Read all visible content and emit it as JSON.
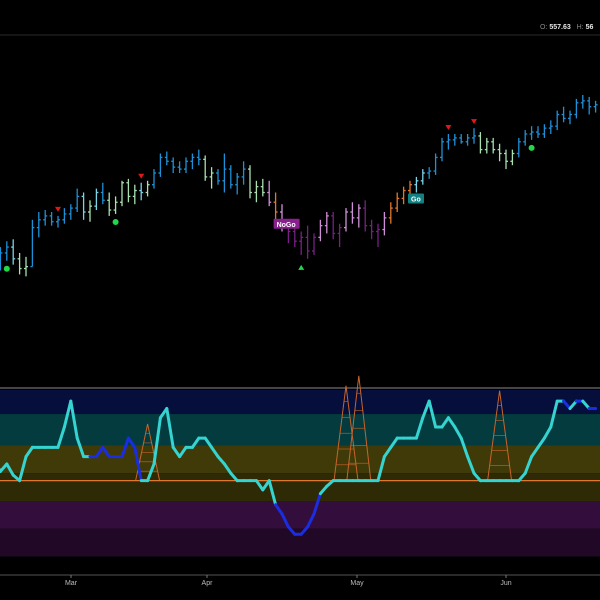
{
  "header": {
    "open_label": "O:",
    "open_value": "557.63",
    "high_label": "H:",
    "high_value": "56"
  },
  "colors": {
    "background": "#000000",
    "strong_up": "#1e90d8",
    "weak_up": "#78d4e6",
    "neutral": "#a8e0b0",
    "weak_down": "#cf8fd6",
    "strong_down": "#7a1f86",
    "neutral_orange": "#e0782c",
    "oscillator_cyan": "#35d4d0",
    "oscillator_blue": "#1a2de0",
    "volume_orange": "#c8642a",
    "go_badge": "#128080",
    "nogo_badge": "#8a1f8e",
    "up_triangle": "#22d84a",
    "down_triangle": "#e01818",
    "dot": "#22d84a"
  },
  "chart_data": {
    "type": "ohlc",
    "x_axis_months": [
      "Mar",
      "Apr",
      "May",
      "Jun"
    ],
    "price_panel": {
      "bar_colors_legend": [
        "strong_up",
        "weak_up",
        "neutral",
        "weak_down",
        "strong_down",
        "neutral_orange"
      ],
      "bars": [
        {
          "i": 0,
          "o": 0.12,
          "h": 0.18,
          "l": 0.06,
          "c": 0.14,
          "col": "weak_up"
        },
        {
          "i": 1,
          "o": 0.14,
          "h": 0.22,
          "l": 0.1,
          "c": 0.19,
          "col": "strong_up"
        },
        {
          "i": 2,
          "o": 0.19,
          "h": 0.25,
          "l": 0.15,
          "c": 0.22,
          "col": "strong_up"
        },
        {
          "i": 3,
          "o": 0.22,
          "h": 0.26,
          "l": 0.13,
          "c": 0.16,
          "col": "weak_up"
        },
        {
          "i": 4,
          "o": 0.16,
          "h": 0.19,
          "l": 0.08,
          "c": 0.11,
          "col": "neutral"
        },
        {
          "i": 5,
          "o": 0.11,
          "h": 0.17,
          "l": 0.07,
          "c": 0.12,
          "col": "neutral"
        },
        {
          "i": 6,
          "o": 0.12,
          "h": 0.36,
          "l": 0.12,
          "c": 0.32,
          "col": "strong_up"
        },
        {
          "i": 7,
          "o": 0.32,
          "h": 0.4,
          "l": 0.27,
          "c": 0.36,
          "col": "strong_up"
        },
        {
          "i": 8,
          "o": 0.36,
          "h": 0.41,
          "l": 0.33,
          "c": 0.38,
          "col": "strong_up"
        },
        {
          "i": 9,
          "o": 0.38,
          "h": 0.4,
          "l": 0.33,
          "c": 0.35,
          "col": "strong_up"
        },
        {
          "i": 10,
          "o": 0.35,
          "h": 0.38,
          "l": 0.32,
          "c": 0.36,
          "col": "strong_up"
        },
        {
          "i": 11,
          "o": 0.36,
          "h": 0.42,
          "l": 0.34,
          "c": 0.39,
          "col": "strong_up"
        },
        {
          "i": 12,
          "o": 0.39,
          "h": 0.44,
          "l": 0.36,
          "c": 0.42,
          "col": "strong_up"
        },
        {
          "i": 13,
          "o": 0.42,
          "h": 0.52,
          "l": 0.4,
          "c": 0.48,
          "col": "strong_up"
        },
        {
          "i": 14,
          "o": 0.48,
          "h": 0.5,
          "l": 0.36,
          "c": 0.4,
          "col": "weak_up"
        },
        {
          "i": 15,
          "o": 0.4,
          "h": 0.46,
          "l": 0.35,
          "c": 0.43,
          "col": "neutral"
        },
        {
          "i": 16,
          "o": 0.43,
          "h": 0.52,
          "l": 0.41,
          "c": 0.5,
          "col": "weak_up"
        },
        {
          "i": 17,
          "o": 0.5,
          "h": 0.55,
          "l": 0.44,
          "c": 0.46,
          "col": "strong_up"
        },
        {
          "i": 18,
          "o": 0.46,
          "h": 0.5,
          "l": 0.38,
          "c": 0.41,
          "col": "neutral"
        },
        {
          "i": 19,
          "o": 0.41,
          "h": 0.48,
          "l": 0.39,
          "c": 0.45,
          "col": "neutral"
        },
        {
          "i": 20,
          "o": 0.45,
          "h": 0.56,
          "l": 0.43,
          "c": 0.55,
          "col": "neutral"
        },
        {
          "i": 21,
          "o": 0.55,
          "h": 0.57,
          "l": 0.45,
          "c": 0.48,
          "col": "neutral"
        },
        {
          "i": 22,
          "o": 0.48,
          "h": 0.54,
          "l": 0.44,
          "c": 0.51,
          "col": "neutral"
        },
        {
          "i": 23,
          "o": 0.51,
          "h": 0.55,
          "l": 0.46,
          "c": 0.5,
          "col": "weak_up"
        },
        {
          "i": 24,
          "o": 0.5,
          "h": 0.56,
          "l": 0.48,
          "c": 0.54,
          "col": "neutral"
        },
        {
          "i": 25,
          "o": 0.54,
          "h": 0.62,
          "l": 0.52,
          "c": 0.6,
          "col": "strong_up"
        },
        {
          "i": 26,
          "o": 0.6,
          "h": 0.7,
          "l": 0.58,
          "c": 0.68,
          "col": "strong_up"
        },
        {
          "i": 27,
          "o": 0.68,
          "h": 0.71,
          "l": 0.64,
          "c": 0.66,
          "col": "strong_up"
        },
        {
          "i": 28,
          "o": 0.66,
          "h": 0.68,
          "l": 0.6,
          "c": 0.63,
          "col": "strong_up"
        },
        {
          "i": 29,
          "o": 0.63,
          "h": 0.66,
          "l": 0.6,
          "c": 0.62,
          "col": "strong_up"
        },
        {
          "i": 30,
          "o": 0.62,
          "h": 0.68,
          "l": 0.6,
          "c": 0.66,
          "col": "strong_up"
        },
        {
          "i": 31,
          "o": 0.66,
          "h": 0.7,
          "l": 0.62,
          "c": 0.68,
          "col": "strong_up"
        },
        {
          "i": 32,
          "o": 0.68,
          "h": 0.72,
          "l": 0.64,
          "c": 0.67,
          "col": "strong_up"
        },
        {
          "i": 33,
          "o": 0.67,
          "h": 0.69,
          "l": 0.56,
          "c": 0.58,
          "col": "neutral"
        },
        {
          "i": 34,
          "o": 0.58,
          "h": 0.63,
          "l": 0.52,
          "c": 0.6,
          "col": "neutral"
        },
        {
          "i": 35,
          "o": 0.6,
          "h": 0.62,
          "l": 0.54,
          "c": 0.56,
          "col": "strong_up"
        },
        {
          "i": 36,
          "o": 0.56,
          "h": 0.7,
          "l": 0.5,
          "c": 0.62,
          "col": "strong_up"
        },
        {
          "i": 37,
          "o": 0.62,
          "h": 0.64,
          "l": 0.52,
          "c": 0.54,
          "col": "strong_up"
        },
        {
          "i": 38,
          "o": 0.54,
          "h": 0.6,
          "l": 0.49,
          "c": 0.58,
          "col": "strong_up"
        },
        {
          "i": 39,
          "o": 0.58,
          "h": 0.66,
          "l": 0.54,
          "c": 0.62,
          "col": "strong_up"
        },
        {
          "i": 40,
          "o": 0.62,
          "h": 0.64,
          "l": 0.47,
          "c": 0.5,
          "col": "neutral"
        },
        {
          "i": 41,
          "o": 0.5,
          "h": 0.56,
          "l": 0.45,
          "c": 0.53,
          "col": "neutral"
        },
        {
          "i": 42,
          "o": 0.53,
          "h": 0.57,
          "l": 0.48,
          "c": 0.5,
          "col": "neutral"
        },
        {
          "i": 43,
          "o": 0.5,
          "h": 0.56,
          "l": 0.43,
          "c": 0.45,
          "col": "weak_down"
        },
        {
          "i": 44,
          "o": 0.45,
          "h": 0.5,
          "l": 0.36,
          "c": 0.4,
          "col": "neutral_orange"
        },
        {
          "i": 45,
          "o": 0.4,
          "h": 0.44,
          "l": 0.3,
          "c": 0.32,
          "col": "weak_down"
        },
        {
          "i": 46,
          "o": 0.32,
          "h": 0.36,
          "l": 0.24,
          "c": 0.3,
          "col": "strong_down"
        },
        {
          "i": 47,
          "o": 0.3,
          "h": 0.33,
          "l": 0.22,
          "c": 0.25,
          "col": "strong_down"
        },
        {
          "i": 48,
          "o": 0.25,
          "h": 0.3,
          "l": 0.18,
          "c": 0.27,
          "col": "strong_down"
        },
        {
          "i": 49,
          "o": 0.27,
          "h": 0.33,
          "l": 0.16,
          "c": 0.2,
          "col": "strong_down"
        },
        {
          "i": 50,
          "o": 0.2,
          "h": 0.29,
          "l": 0.18,
          "c": 0.27,
          "col": "strong_down"
        },
        {
          "i": 51,
          "o": 0.27,
          "h": 0.36,
          "l": 0.25,
          "c": 0.33,
          "col": "weak_down"
        },
        {
          "i": 52,
          "o": 0.33,
          "h": 0.4,
          "l": 0.29,
          "c": 0.38,
          "col": "weak_down"
        },
        {
          "i": 53,
          "o": 0.38,
          "h": 0.4,
          "l": 0.26,
          "c": 0.29,
          "col": "strong_down"
        },
        {
          "i": 54,
          "o": 0.29,
          "h": 0.34,
          "l": 0.22,
          "c": 0.32,
          "col": "strong_down"
        },
        {
          "i": 55,
          "o": 0.32,
          "h": 0.42,
          "l": 0.3,
          "c": 0.4,
          "col": "weak_down"
        },
        {
          "i": 56,
          "o": 0.4,
          "h": 0.45,
          "l": 0.34,
          "c": 0.37,
          "col": "weak_down"
        },
        {
          "i": 57,
          "o": 0.37,
          "h": 0.44,
          "l": 0.32,
          "c": 0.42,
          "col": "weak_down"
        },
        {
          "i": 58,
          "o": 0.42,
          "h": 0.46,
          "l": 0.3,
          "c": 0.33,
          "col": "strong_down"
        },
        {
          "i": 59,
          "o": 0.33,
          "h": 0.36,
          "l": 0.26,
          "c": 0.3,
          "col": "strong_down"
        },
        {
          "i": 60,
          "o": 0.3,
          "h": 0.34,
          "l": 0.22,
          "c": 0.31,
          "col": "strong_down"
        },
        {
          "i": 61,
          "o": 0.31,
          "h": 0.4,
          "l": 0.28,
          "c": 0.37,
          "col": "weak_down"
        },
        {
          "i": 62,
          "o": 0.37,
          "h": 0.45,
          "l": 0.34,
          "c": 0.42,
          "col": "neutral_orange"
        },
        {
          "i": 63,
          "o": 0.42,
          "h": 0.5,
          "l": 0.4,
          "c": 0.47,
          "col": "neutral_orange"
        },
        {
          "i": 64,
          "o": 0.47,
          "h": 0.53,
          "l": 0.44,
          "c": 0.51,
          "col": "neutral_orange"
        },
        {
          "i": 65,
          "o": 0.51,
          "h": 0.56,
          "l": 0.49,
          "c": 0.54,
          "col": "neutral_orange"
        },
        {
          "i": 66,
          "o": 0.54,
          "h": 0.58,
          "l": 0.5,
          "c": 0.56,
          "col": "weak_up"
        },
        {
          "i": 67,
          "o": 0.56,
          "h": 0.62,
          "l": 0.54,
          "c": 0.6,
          "col": "weak_up"
        },
        {
          "i": 68,
          "o": 0.6,
          "h": 0.63,
          "l": 0.57,
          "c": 0.61,
          "col": "strong_up"
        },
        {
          "i": 69,
          "o": 0.61,
          "h": 0.7,
          "l": 0.59,
          "c": 0.68,
          "col": "strong_up"
        },
        {
          "i": 70,
          "o": 0.68,
          "h": 0.78,
          "l": 0.66,
          "c": 0.76,
          "col": "strong_up"
        },
        {
          "i": 71,
          "o": 0.76,
          "h": 0.8,
          "l": 0.72,
          "c": 0.77,
          "col": "strong_up"
        },
        {
          "i": 72,
          "o": 0.77,
          "h": 0.8,
          "l": 0.74,
          "c": 0.78,
          "col": "strong_up"
        },
        {
          "i": 73,
          "o": 0.78,
          "h": 0.8,
          "l": 0.75,
          "c": 0.76,
          "col": "strong_up"
        },
        {
          "i": 74,
          "o": 0.76,
          "h": 0.8,
          "l": 0.74,
          "c": 0.78,
          "col": "strong_up"
        },
        {
          "i": 75,
          "o": 0.78,
          "h": 0.83,
          "l": 0.75,
          "c": 0.79,
          "col": "strong_up"
        },
        {
          "i": 76,
          "o": 0.79,
          "h": 0.81,
          "l": 0.7,
          "c": 0.72,
          "col": "neutral"
        },
        {
          "i": 77,
          "o": 0.72,
          "h": 0.78,
          "l": 0.7,
          "c": 0.76,
          "col": "neutral"
        },
        {
          "i": 78,
          "o": 0.76,
          "h": 0.78,
          "l": 0.7,
          "c": 0.72,
          "col": "neutral"
        },
        {
          "i": 79,
          "o": 0.72,
          "h": 0.75,
          "l": 0.66,
          "c": 0.7,
          "col": "neutral"
        },
        {
          "i": 80,
          "o": 0.7,
          "h": 0.72,
          "l": 0.62,
          "c": 0.66,
          "col": "neutral"
        },
        {
          "i": 81,
          "o": 0.66,
          "h": 0.72,
          "l": 0.64,
          "c": 0.7,
          "col": "neutral"
        },
        {
          "i": 82,
          "o": 0.7,
          "h": 0.78,
          "l": 0.68,
          "c": 0.76,
          "col": "strong_up"
        },
        {
          "i": 83,
          "o": 0.76,
          "h": 0.82,
          "l": 0.74,
          "c": 0.8,
          "col": "strong_up"
        },
        {
          "i": 84,
          "o": 0.8,
          "h": 0.84,
          "l": 0.77,
          "c": 0.81,
          "col": "strong_up"
        },
        {
          "i": 85,
          "o": 0.81,
          "h": 0.84,
          "l": 0.78,
          "c": 0.8,
          "col": "strong_up"
        },
        {
          "i": 86,
          "o": 0.8,
          "h": 0.85,
          "l": 0.78,
          "c": 0.83,
          "col": "strong_up"
        },
        {
          "i": 87,
          "o": 0.83,
          "h": 0.87,
          "l": 0.8,
          "c": 0.84,
          "col": "strong_up"
        },
        {
          "i": 88,
          "o": 0.84,
          "h": 0.92,
          "l": 0.82,
          "c": 0.9,
          "col": "strong_up"
        },
        {
          "i": 89,
          "o": 0.9,
          "h": 0.94,
          "l": 0.86,
          "c": 0.88,
          "col": "strong_up"
        },
        {
          "i": 90,
          "o": 0.88,
          "h": 0.92,
          "l": 0.85,
          "c": 0.9,
          "col": "strong_up"
        },
        {
          "i": 91,
          "o": 0.9,
          "h": 0.98,
          "l": 0.88,
          "c": 0.96,
          "col": "strong_up"
        },
        {
          "i": 92,
          "o": 0.96,
          "h": 1.0,
          "l": 0.93,
          "c": 0.97,
          "col": "strong_up"
        },
        {
          "i": 93,
          "o": 0.97,
          "h": 0.99,
          "l": 0.9,
          "c": 0.94,
          "col": "strong_up"
        },
        {
          "i": 94,
          "o": 0.94,
          "h": 0.97,
          "l": 0.91,
          "c": 0.95,
          "col": "strong_up"
        }
      ],
      "markers": [
        {
          "type": "up_triangle",
          "bar": 48
        },
        {
          "type": "down_triangle",
          "bar": 10
        },
        {
          "type": "down_triangle",
          "bar": 23
        },
        {
          "type": "down_triangle",
          "bar": 71
        },
        {
          "type": "down_triangle",
          "bar": 75
        },
        {
          "type": "dot",
          "bar": 2
        },
        {
          "type": "dot",
          "bar": 19
        },
        {
          "type": "dot",
          "bar": 84
        }
      ],
      "badges": [
        {
          "label": "NoGo",
          "bar": 44,
          "color": "nogo_badge"
        },
        {
          "label": "Go",
          "bar": 65,
          "color": "go_badge"
        }
      ]
    },
    "oscillator_panel": {
      "bands": [
        {
          "from": 0.87,
          "to": 1.0,
          "color": "#060e3c"
        },
        {
          "from": 0.7,
          "to": 0.87,
          "color": "#033b3f"
        },
        {
          "from": 0.55,
          "to": 0.7,
          "color": "#3f3a08"
        },
        {
          "from": 0.4,
          "to": 0.55,
          "color": "#2e2a06"
        },
        {
          "from": 0.25,
          "to": 0.4,
          "color": "#330d3c"
        },
        {
          "from": 0.1,
          "to": 0.25,
          "color": "#200826"
        },
        {
          "from": 0.0,
          "to": 0.1,
          "color": "#000000"
        }
      ],
      "zero_level": 0.51,
      "values": [
        0.62,
        0.56,
        0.6,
        0.54,
        0.51,
        0.64,
        0.69,
        0.69,
        0.69,
        0.69,
        0.69,
        0.8,
        0.94,
        0.74,
        0.64,
        0.64,
        0.64,
        0.69,
        0.64,
        0.64,
        0.64,
        0.74,
        0.69,
        0.51,
        0.51,
        0.6,
        0.85,
        0.9,
        0.69,
        0.64,
        0.69,
        0.69,
        0.74,
        0.74,
        0.69,
        0.64,
        0.6,
        0.55,
        0.51,
        0.51,
        0.51,
        0.51,
        0.46,
        0.51,
        0.38,
        0.33,
        0.26,
        0.22,
        0.22,
        0.26,
        0.33,
        0.44,
        0.48,
        0.51,
        0.51,
        0.51,
        0.51,
        0.51,
        0.51,
        0.51,
        0.51,
        0.64,
        0.69,
        0.74,
        0.74,
        0.74,
        0.74,
        0.85,
        0.94,
        0.8,
        0.8,
        0.85,
        0.8,
        0.74,
        0.64,
        0.55,
        0.51,
        0.51,
        0.51,
        0.51,
        0.51,
        0.51,
        0.51,
        0.55,
        0.64,
        0.69,
        0.74,
        0.8,
        0.94,
        0.94,
        0.9,
        0.94,
        0.94,
        0.9,
        0.9
      ],
      "series_color_by_sign": true,
      "volume_spikes": [
        {
          "bar": 24,
          "height": 0.34
        },
        {
          "bar": 55,
          "height": 0.57
        },
        {
          "bar": 57,
          "height": 0.63
        },
        {
          "bar": 79,
          "height": 0.54
        }
      ]
    }
  }
}
